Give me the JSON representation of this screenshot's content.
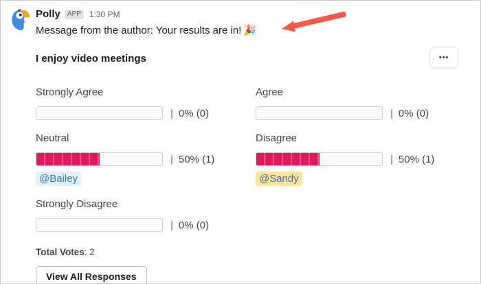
{
  "message": {
    "sender": "Polly",
    "badge": "APP",
    "timestamp": "1:30 PM",
    "text": "Message from the author: Your results are in!",
    "emoji": "🎉"
  },
  "poll": {
    "title": "I enjoy video meetings",
    "more_button": "•••",
    "separator": "|",
    "options": [
      {
        "label": "Strongly Agree",
        "percent": 0,
        "votes": 0,
        "display": "0% (0)",
        "mention": null,
        "mention_style": null
      },
      {
        "label": "Agree",
        "percent": 0,
        "votes": 0,
        "display": "0% (0)",
        "mention": null,
        "mention_style": null
      },
      {
        "label": "Neutral",
        "percent": 50,
        "votes": 1,
        "display": "50% (1)",
        "mention": "@Bailey",
        "mention_style": "blue"
      },
      {
        "label": "Disagree",
        "percent": 50,
        "votes": 1,
        "display": "50% (1)",
        "mention": "@Sandy",
        "mention_style": "yellow"
      },
      {
        "label": "Strongly Disagree",
        "percent": 0,
        "votes": 0,
        "display": "0% (0)",
        "mention": null,
        "mention_style": null
      }
    ],
    "total_votes_label": "Total Votes",
    "total_votes": "2",
    "view_all_button": "View All Responses"
  },
  "colors": {
    "bar_fill": "#e0195e",
    "bar_fill_light": "#ee4f85",
    "separator": "#d64d6e",
    "mention_blue_bg": "#e2f0f9",
    "mention_blue_text": "#357cb0",
    "mention_yellow_bg": "#f9e6a1",
    "mention_yellow_text": "#4a6d96",
    "arrow": "#f0594b"
  }
}
